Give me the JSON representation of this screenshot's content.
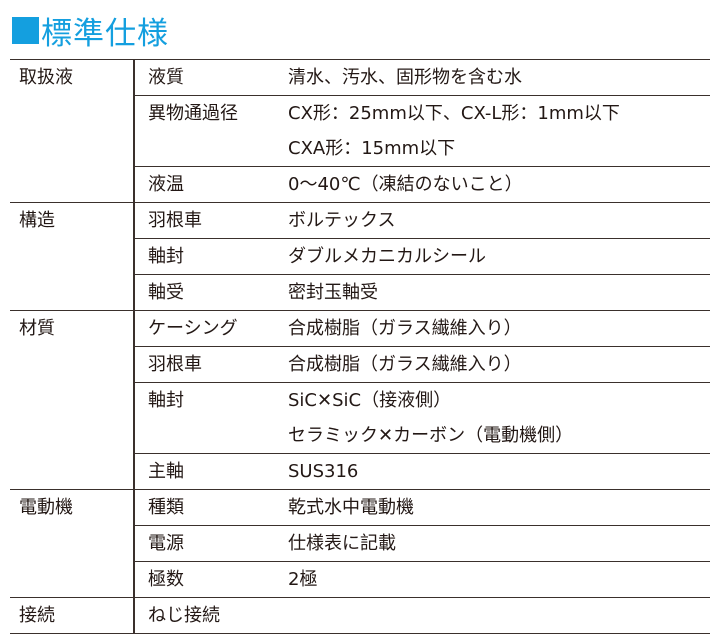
{
  "title": "標準仕様",
  "colors": {
    "accent": "#149fdf",
    "text": "#231815"
  },
  "groups": {
    "fluid": {
      "label": "取扱液",
      "rows": [
        {
          "key": "液質",
          "value": [
            "清水、汚水、固形物を含む水"
          ]
        },
        {
          "key": "異物通過径",
          "value": [
            "CX形：25mm以下、CX-L形：1mm以下",
            "CXA形：15mm以下"
          ]
        },
        {
          "key": "液温",
          "value": [
            "0〜40℃（凍結のないこと）"
          ]
        }
      ]
    },
    "structure": {
      "label": "構造",
      "rows": [
        {
          "key": "羽根車",
          "value": [
            "ボルテックス"
          ]
        },
        {
          "key": "軸封",
          "value": [
            "ダブルメカニカルシール"
          ]
        },
        {
          "key": "軸受",
          "value": [
            "密封玉軸受"
          ]
        }
      ]
    },
    "material": {
      "label": "材質",
      "rows": [
        {
          "key": "ケーシング",
          "value": [
            "合成樹脂（ガラス繊維入り）"
          ]
        },
        {
          "key": "羽根車",
          "value": [
            "合成樹脂（ガラス繊維入り）"
          ]
        },
        {
          "key": "軸封",
          "value": [
            "SiC✕SiC（接液側）",
            "セラミック✕カーボン（電動機側）"
          ]
        },
        {
          "key": "主軸",
          "value": [
            "SUS316"
          ]
        }
      ]
    },
    "motor": {
      "label": "電動機",
      "rows": [
        {
          "key": "種類",
          "value": [
            "乾式水中電動機"
          ]
        },
        {
          "key": "電源",
          "value": [
            "仕様表に記載"
          ]
        },
        {
          "key": "極数",
          "value": [
            "2極"
          ]
        }
      ]
    },
    "connection": {
      "label": "接続",
      "value": "ねじ接続"
    }
  }
}
